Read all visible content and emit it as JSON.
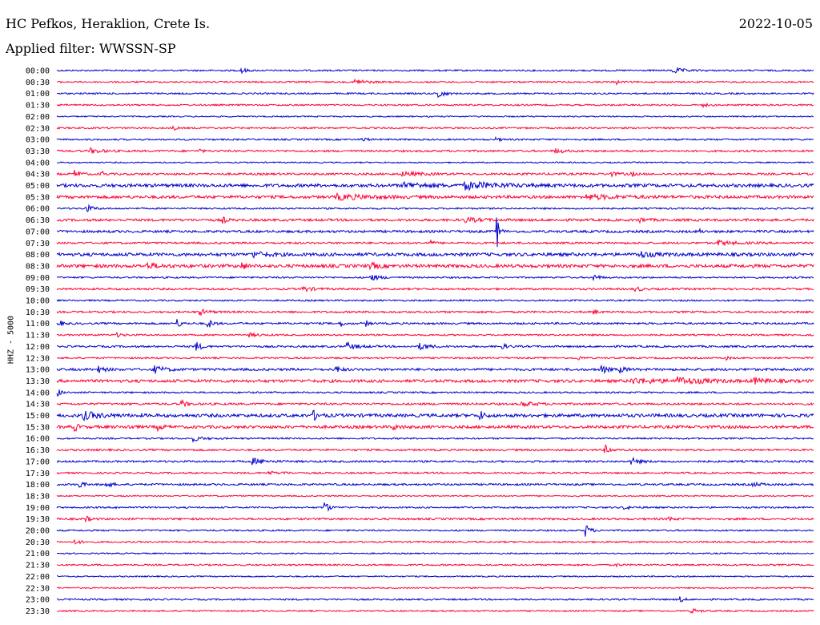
{
  "header": {
    "station": "HC Pefkos, Heraklion, Crete Is.",
    "date": "2022-10-05",
    "filter": "Applied filter: WWSSN-SP"
  },
  "chart_data": {
    "type": "line",
    "ylabel": "HHZ - 5000",
    "colors": [
      "#0000cc",
      "#ff0033"
    ],
    "rows": [
      {
        "label": "00:00",
        "noise": 1.0,
        "events": [
          [
            0.245,
            4.5,
            0.004
          ],
          [
            0.815,
            3.5,
            0.012
          ]
        ]
      },
      {
        "label": "00:30",
        "noise": 1.0,
        "events": [
          [
            0.395,
            3.5,
            0.012
          ],
          [
            0.74,
            2.5,
            0.003
          ]
        ]
      },
      {
        "label": "01:00",
        "noise": 1.0,
        "events": [
          [
            0.505,
            6.0,
            0.006
          ]
        ]
      },
      {
        "label": "01:30",
        "noise": 1.0,
        "events": [
          [
            0.855,
            2.5,
            0.004
          ]
        ]
      },
      {
        "label": "02:00",
        "noise": 0.8,
        "events": []
      },
      {
        "label": "02:30",
        "noise": 1.0,
        "events": [
          [
            0.155,
            2.5,
            0.003
          ]
        ]
      },
      {
        "label": "03:00",
        "noise": 1.0,
        "events": [
          [
            0.405,
            2.5,
            0.005
          ],
          [
            0.58,
            2.0,
            0.006
          ]
        ]
      },
      {
        "label": "03:30",
        "noise": 1.2,
        "events": [
          [
            0.045,
            3.0,
            0.012
          ],
          [
            0.19,
            2.0,
            0.003
          ],
          [
            0.66,
            2.5,
            0.01
          ]
        ]
      },
      {
        "label": "04:00",
        "noise": 0.8,
        "events": []
      },
      {
        "label": "04:30",
        "noise": 1.3,
        "events": [
          [
            0.025,
            4.0,
            0.006
          ],
          [
            0.06,
            3.5,
            0.003
          ],
          [
            0.455,
            2.5,
            0.025
          ],
          [
            0.73,
            2.5,
            0.01
          ],
          [
            0.76,
            3.0,
            0.003
          ]
        ]
      },
      {
        "label": "05:00",
        "noise": 2.0,
        "events": [
          [
            0.46,
            3.0,
            0.03
          ],
          [
            0.54,
            4.0,
            0.04
          ]
        ]
      },
      {
        "label": "05:30",
        "noise": 1.8,
        "events": [
          [
            0.37,
            3.0,
            0.04
          ],
          [
            0.7,
            2.5,
            0.04
          ]
        ]
      },
      {
        "label": "06:00",
        "noise": 1.0,
        "events": [
          [
            0.04,
            4.0,
            0.008
          ]
        ]
      },
      {
        "label": "06:30",
        "noise": 1.5,
        "events": [
          [
            0.22,
            3.5,
            0.004
          ],
          [
            0.54,
            2.5,
            0.02
          ],
          [
            0.77,
            2.5,
            0.008
          ]
        ]
      },
      {
        "label": "07:00",
        "noise": 1.5,
        "events": [
          [
            0.582,
            18.0,
            0.003
          ],
          [
            0.85,
            3.0,
            0.002
          ]
        ]
      },
      {
        "label": "07:30",
        "noise": 1.2,
        "events": [
          [
            0.495,
            3.0,
            0.003
          ],
          [
            0.875,
            2.5,
            0.02
          ]
        ]
      },
      {
        "label": "08:00",
        "noise": 2.0,
        "events": [
          [
            0.26,
            3.0,
            0.015
          ],
          [
            0.77,
            3.5,
            0.015
          ]
        ]
      },
      {
        "label": "08:30",
        "noise": 2.0,
        "events": [
          [
            0.12,
            3.0,
            0.015
          ],
          [
            0.245,
            4.0,
            0.005
          ],
          [
            0.415,
            3.0,
            0.01
          ]
        ]
      },
      {
        "label": "09:00",
        "noise": 1.0,
        "events": [
          [
            0.415,
            3.5,
            0.012
          ],
          [
            0.71,
            4.0,
            0.006
          ]
        ]
      },
      {
        "label": "09:30",
        "noise": 1.2,
        "events": [
          [
            0.325,
            3.0,
            0.012
          ],
          [
            0.765,
            3.5,
            0.006
          ]
        ]
      },
      {
        "label": "10:00",
        "noise": 1.0,
        "events": []
      },
      {
        "label": "10:30",
        "noise": 1.2,
        "events": [
          [
            0.19,
            3.0,
            0.01
          ],
          [
            0.71,
            2.5,
            0.004
          ]
        ]
      },
      {
        "label": "11:00",
        "noise": 1.2,
        "events": [
          [
            0.003,
            4.0,
            0.004
          ],
          [
            0.16,
            5.0,
            0.004
          ],
          [
            0.2,
            6.0,
            0.005
          ],
          [
            0.375,
            4.0,
            0.004
          ],
          [
            0.41,
            3.0,
            0.003
          ]
        ]
      },
      {
        "label": "11:30",
        "noise": 1.0,
        "events": [
          [
            0.08,
            2.0,
            0.008
          ],
          [
            0.255,
            2.0,
            0.012
          ]
        ]
      },
      {
        "label": "12:00",
        "noise": 1.2,
        "events": [
          [
            0.185,
            5.0,
            0.006
          ],
          [
            0.385,
            4.0,
            0.012
          ],
          [
            0.48,
            3.5,
            0.012
          ],
          [
            0.59,
            2.5,
            0.006
          ]
        ]
      },
      {
        "label": "12:30",
        "noise": 1.0,
        "events": [
          [
            0.69,
            2.5,
            0.004
          ],
          [
            0.885,
            2.0,
            0.004
          ]
        ]
      },
      {
        "label": "13:00",
        "noise": 1.5,
        "events": [
          [
            0.055,
            3.5,
            0.008
          ],
          [
            0.13,
            4.0,
            0.012
          ],
          [
            0.37,
            3.5,
            0.006
          ],
          [
            0.72,
            5.5,
            0.006
          ],
          [
            0.745,
            3.0,
            0.008
          ]
        ]
      },
      {
        "label": "13:30",
        "noise": 1.8,
        "events": [
          [
            0.76,
            3.0,
            0.04
          ],
          [
            0.82,
            3.5,
            0.03
          ],
          [
            0.92,
            3.5,
            0.015
          ]
        ]
      },
      {
        "label": "14:00",
        "noise": 1.0,
        "events": [
          [
            0.002,
            4.0,
            0.004
          ]
        ]
      },
      {
        "label": "14:30",
        "noise": 1.3,
        "events": [
          [
            0.165,
            4.0,
            0.006
          ],
          [
            0.615,
            3.0,
            0.015
          ]
        ]
      },
      {
        "label": "15:00",
        "noise": 2.0,
        "events": [
          [
            0.035,
            4.5,
            0.02
          ],
          [
            0.34,
            5.0,
            0.006
          ],
          [
            0.56,
            4.5,
            0.005
          ]
        ]
      },
      {
        "label": "15:30",
        "noise": 1.8,
        "events": [
          [
            0.025,
            4.0,
            0.004
          ],
          [
            0.095,
            2.5,
            0.004
          ],
          [
            0.135,
            3.0,
            0.006
          ],
          [
            0.445,
            2.5,
            0.008
          ]
        ]
      },
      {
        "label": "16:00",
        "noise": 1.0,
        "events": [
          [
            0.18,
            3.0,
            0.012
          ]
        ]
      },
      {
        "label": "16:30",
        "noise": 1.2,
        "events": [
          [
            0.725,
            5.0,
            0.006
          ]
        ]
      },
      {
        "label": "17:00",
        "noise": 1.2,
        "events": [
          [
            0.26,
            3.5,
            0.015
          ],
          [
            0.76,
            4.0,
            0.01
          ]
        ]
      },
      {
        "label": "17:30",
        "noise": 1.0,
        "events": [
          [
            0.28,
            2.5,
            0.006
          ],
          [
            0.3,
            2.0,
            0.004
          ]
        ]
      },
      {
        "label": "18:00",
        "noise": 1.2,
        "events": [
          [
            0.03,
            5.0,
            0.004
          ],
          [
            0.065,
            4.0,
            0.006
          ],
          [
            0.92,
            2.0,
            0.012
          ]
        ]
      },
      {
        "label": "18:30",
        "noise": 0.8,
        "events": []
      },
      {
        "label": "19:00",
        "noise": 1.0,
        "events": [
          [
            0.08,
            2.0,
            0.003
          ],
          [
            0.355,
            8.0,
            0.004
          ],
          [
            0.75,
            2.0,
            0.01
          ]
        ]
      },
      {
        "label": "19:30",
        "noise": 1.2,
        "events": [
          [
            0.04,
            2.5,
            0.005
          ],
          [
            0.81,
            2.5,
            0.005
          ]
        ]
      },
      {
        "label": "20:00",
        "noise": 1.0,
        "events": [
          [
            0.7,
            7.0,
            0.005
          ]
        ]
      },
      {
        "label": "20:30",
        "noise": 1.0,
        "events": [
          [
            0.025,
            3.5,
            0.005
          ]
        ]
      },
      {
        "label": "21:00",
        "noise": 0.8,
        "events": []
      },
      {
        "label": "21:30",
        "noise": 1.0,
        "events": [
          [
            0.74,
            2.0,
            0.004
          ]
        ]
      },
      {
        "label": "22:00",
        "noise": 0.8,
        "events": []
      },
      {
        "label": "22:30",
        "noise": 0.8,
        "events": []
      },
      {
        "label": "23:00",
        "noise": 1.0,
        "events": [
          [
            0.825,
            3.0,
            0.004
          ]
        ]
      },
      {
        "label": "23:30",
        "noise": 0.9,
        "events": [
          [
            0.84,
            2.5,
            0.01
          ]
        ]
      }
    ]
  }
}
